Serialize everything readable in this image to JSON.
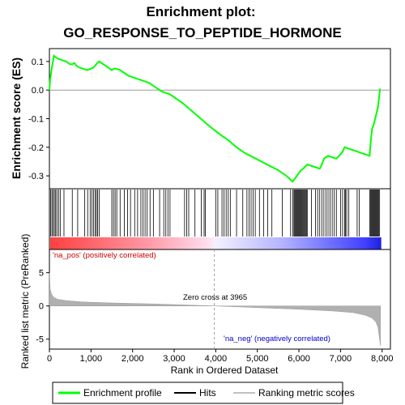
{
  "chart_data": {
    "type": "line",
    "title_line1": "Enrichment plot:",
    "title_line2": "GO_RESPONSE_TO_PEPTIDE_HORMONE",
    "top_panel": {
      "ylabel": "Enrichment score (ES)",
      "ylim": [
        -0.345,
        0.145
      ],
      "yticks": [
        0.1,
        0.0,
        -0.1,
        -0.2,
        -0.3
      ],
      "ytick_labels": [
        "0.1",
        "0.0",
        "-0.1",
        "-0.2",
        "-0.3"
      ],
      "series": [
        {
          "name": "Enrichment profile",
          "color": "#00ff00",
          "x": [
            0,
            20,
            40,
            60,
            80,
            110,
            150,
            200,
            300,
            400,
            500,
            550,
            600,
            650,
            700,
            800,
            900,
            950,
            1000,
            1050,
            1100,
            1150,
            1200,
            1300,
            1400,
            1500,
            1550,
            1600,
            1700,
            1800,
            1900,
            2000,
            2100,
            2200,
            2300,
            2400,
            2500,
            2600,
            2700,
            2800,
            2900,
            3000,
            3200,
            3400,
            3600,
            3800,
            3965,
            4100,
            4300,
            4500,
            4700,
            4900,
            5100,
            5300,
            5500,
            5700,
            5850,
            5900,
            5950,
            6000,
            6050,
            6100,
            6200,
            6300,
            6400,
            6500,
            6550,
            6600,
            6700,
            6800,
            6900,
            7000,
            7050,
            7100,
            7200,
            7300,
            7400,
            7500,
            7600,
            7700,
            7720,
            7740,
            7760,
            7800,
            7850,
            7900,
            7950
          ],
          "values": [
            0.0,
            0.04,
            0.06,
            0.08,
            0.095,
            0.12,
            0.115,
            0.11,
            0.105,
            0.1,
            0.09,
            0.09,
            0.095,
            0.085,
            0.08,
            0.075,
            0.07,
            0.072,
            0.075,
            0.078,
            0.085,
            0.095,
            0.1,
            0.09,
            0.08,
            0.07,
            0.075,
            0.075,
            0.07,
            0.06,
            0.05,
            0.045,
            0.04,
            0.035,
            0.03,
            0.025,
            0.015,
            0.005,
            -0.005,
            -0.01,
            -0.015,
            -0.025,
            -0.045,
            -0.07,
            -0.095,
            -0.12,
            -0.14,
            -0.155,
            -0.175,
            -0.2,
            -0.22,
            -0.235,
            -0.25,
            -0.265,
            -0.28,
            -0.3,
            -0.32,
            -0.31,
            -0.3,
            -0.29,
            -0.28,
            -0.275,
            -0.26,
            -0.265,
            -0.27,
            -0.275,
            -0.26,
            -0.24,
            -0.23,
            -0.235,
            -0.24,
            -0.225,
            -0.215,
            -0.2,
            -0.205,
            -0.21,
            -0.215,
            -0.22,
            -0.225,
            -0.23,
            -0.19,
            -0.16,
            -0.135,
            -0.12,
            -0.09,
            -0.06,
            0.005
          ]
        }
      ]
    },
    "hits_panel": {
      "hit_positions": [
        30,
        60,
        90,
        120,
        150,
        180,
        220,
        260,
        350,
        550,
        680,
        850,
        920,
        980,
        1020,
        1060,
        1100,
        1130,
        1160,
        1200,
        1500,
        1540,
        1580,
        1620,
        1700,
        1800,
        1880,
        1950,
        2050,
        2120,
        2200,
        2250,
        2300,
        2350,
        2420,
        2500,
        2650,
        2750,
        2800,
        2850,
        2900,
        3250,
        3300,
        3350,
        3500,
        3650,
        3720,
        3750,
        4000,
        4050,
        4150,
        4200,
        4250,
        4300,
        4350,
        4500,
        4650,
        4750,
        4800,
        4850,
        4900,
        4950,
        5050,
        5150,
        5250,
        5350,
        5600,
        5800,
        5850,
        5880,
        5900,
        5920,
        5940,
        5960,
        5980,
        6000,
        6020,
        6040,
        6060,
        6080,
        6100,
        6120,
        6140,
        6160,
        6180,
        6200,
        6300,
        6400,
        6450,
        6500,
        6550,
        6600,
        6650,
        6700,
        6750,
        6800,
        6850,
        6900,
        7000,
        7050,
        7100,
        7120,
        7150,
        7200,
        7400,
        7450,
        7700,
        7720,
        7740,
        7760,
        7780,
        7800,
        7820,
        7840,
        7860,
        7880,
        7900,
        7920,
        7940
      ]
    },
    "metric_panel": {
      "ylabel": "Ranked list metric (PreRanked)",
      "ylim": [
        -6.5,
        8.5
      ],
      "yticks": [
        5,
        0,
        -5
      ],
      "ytick_labels": [
        "5",
        "0",
        "-5"
      ],
      "zero_cross_label": "Zero cross at 3965",
      "zero_cross": 3965,
      "pos_label": "'na_pos' (positively correlated)",
      "neg_label": "'na_neg' (negatively correlated)",
      "profile_x": [
        0,
        20,
        50,
        100,
        200,
        400,
        800,
        1500,
        2500,
        3965,
        5000,
        6000,
        6800,
        7300,
        7600,
        7750,
        7850,
        7900,
        7930,
        7960
      ],
      "profile_y": [
        5.0,
        2.5,
        1.8,
        1.3,
        1.0,
        0.8,
        0.6,
        0.45,
        0.3,
        0.0,
        -0.25,
        -0.5,
        -0.75,
        -1.0,
        -1.4,
        -1.8,
        -2.4,
        -3.2,
        -4.5,
        -6.0
      ]
    },
    "xlabel": "Rank in Ordered Dataset",
    "xlim": [
      0,
      8200
    ],
    "xticks": [
      0,
      1000,
      2000,
      3000,
      4000,
      5000,
      6000,
      7000,
      8000
    ],
    "xtick_labels": [
      "0",
      "1,000",
      "2,000",
      "3,000",
      "4,000",
      "5,000",
      "6,000",
      "7,000",
      "8,000"
    ],
    "legend": {
      "placement": "bottom",
      "entries": [
        {
          "label": "Enrichment profile",
          "color": "#00ff00"
        },
        {
          "label": "Hits",
          "color": "#000000"
        },
        {
          "label": "Ranking metric scores",
          "color": "#c0c0c0"
        }
      ]
    },
    "colors": {
      "profile": "#00ff00",
      "pos_annot": "#cc0000",
      "neg_annot": "#0000cc",
      "metric_fill": "#b0b0b0"
    }
  }
}
